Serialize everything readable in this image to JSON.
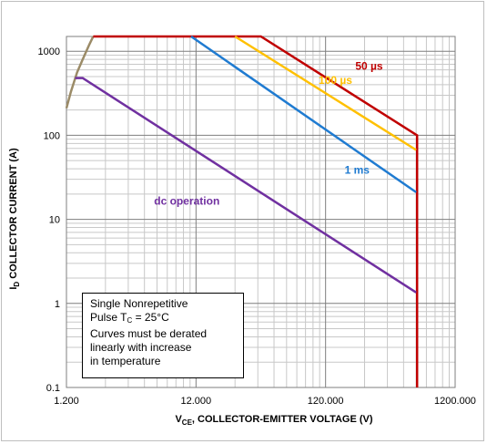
{
  "chart_data": {
    "type": "line",
    "x_scale": "log",
    "y_scale": "log",
    "xlim": [
      1.2,
      1200
    ],
    "ylim": [
      0.1,
      1500
    ],
    "x_ticks": [
      {
        "v": 1.2,
        "label": "1.200"
      },
      {
        "v": 12,
        "label": "12.000"
      },
      {
        "v": 120,
        "label": "120.000"
      },
      {
        "v": 1200,
        "label": "1200.000"
      }
    ],
    "y_ticks": [
      {
        "v": 0.1,
        "label": "0.1"
      },
      {
        "v": 1,
        "label": "1"
      },
      {
        "v": 10,
        "label": "10"
      },
      {
        "v": 100,
        "label": "100"
      },
      {
        "v": 1000,
        "label": "1000"
      }
    ],
    "grid": true,
    "xlabel": {
      "main": "V",
      "sub": "CE",
      "rest": ", COLLECTOR-EMITTER VOLTAGE (V)"
    },
    "ylabel": {
      "main": "I",
      "sub": "D",
      "rest": " COLLECTOR CURRENT (A)"
    },
    "series": [
      {
        "color": "#9b8b67",
        "points": [
          [
            1.2,
            210
          ],
          [
            1.3,
            330
          ],
          [
            1.45,
            560
          ],
          [
            1.6,
            800
          ],
          [
            1.8,
            1200
          ],
          [
            1.93,
            1500
          ]
        ]
      },
      {
        "color": "#c00000",
        "points": [
          [
            1.93,
            1500
          ],
          [
            38,
            1500
          ],
          [
            610,
            100
          ],
          [
            610,
            0.1
          ]
        ]
      },
      {
        "color": "#ffc000",
        "points": [
          [
            24,
            1500
          ],
          [
            600,
            67
          ]
        ]
      },
      {
        "color": "#1f7bd1",
        "points": [
          [
            11,
            1500
          ],
          [
            600,
            21
          ]
        ]
      },
      {
        "color": "#7030a0",
        "points": [
          [
            1.4,
            480
          ],
          [
            1.6,
            480
          ],
          [
            600,
            1.35
          ]
        ]
      }
    ],
    "annotations": [
      {
        "text": "50 µs",
        "x": 260,
        "y": 600,
        "color": "#c00000"
      },
      {
        "text": "100 µs",
        "x": 143,
        "y": 410,
        "color": "#ffc000"
      },
      {
        "text": "1 ms",
        "x": 210,
        "y": 35,
        "color": "#1f7bd1"
      },
      {
        "text": "dc operation",
        "x": 10.2,
        "y": 15,
        "color": "#7030a0"
      }
    ]
  },
  "note": {
    "line1": "Single Nonrepetitive",
    "line2_pre": "Pulse T",
    "line2_sub": "C",
    "line2_post": " = 25°C",
    "line3": "Curves must be derated",
    "line4": "linearly with increase",
    "line5": "in temperature"
  }
}
